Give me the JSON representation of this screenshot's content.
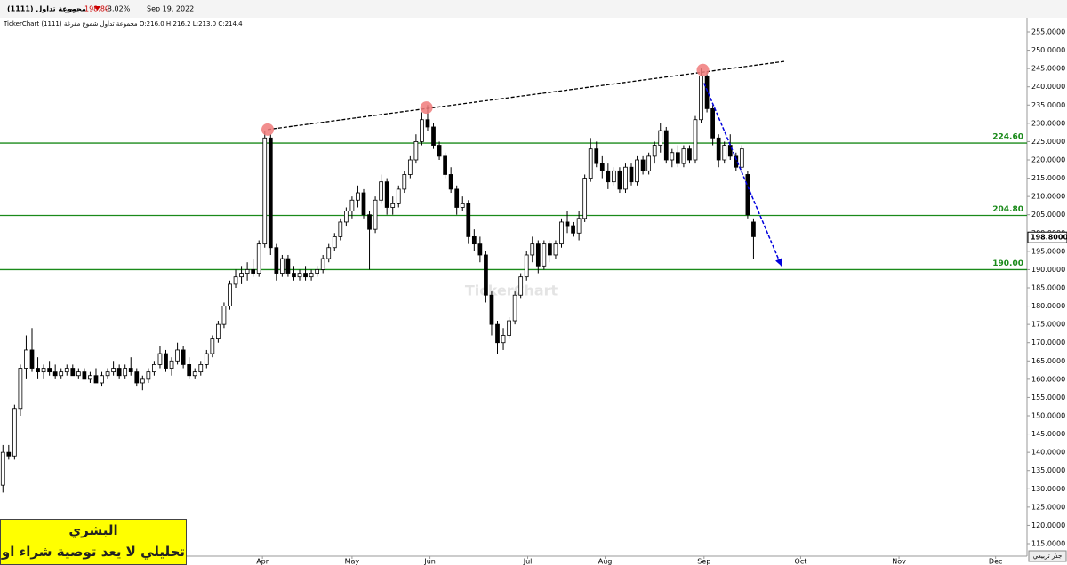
{
  "header": {
    "name": "مجموعة تداول (1111)",
    "period": "يومي",
    "price": "198.80",
    "change": "-3.02%",
    "date": "Sep 19, 2022",
    "info": "TickerChart مجموعة تداول شموع مفرغة (1111) O:216.0 H:216.2 L:213.0 C:214.4"
  },
  "footer": {
    "author": "البشري",
    "disclaimer": "تحليلي لا يعد توصية شراء او بيع",
    "scale_button": "جذر تربيعي"
  },
  "chart_data": {
    "type": "candlestick",
    "watermark": "TickerChart",
    "up_color": "#ffffff",
    "down_color": "#000000",
    "candles": [
      [
        131,
        142,
        129,
        140
      ],
      [
        140,
        142,
        138,
        139
      ],
      [
        139,
        153,
        138,
        152
      ],
      [
        152,
        164,
        150,
        163
      ],
      [
        163,
        172,
        160,
        168
      ],
      [
        168,
        174,
        162,
        163
      ],
      [
        163,
        166,
        160,
        162
      ],
      [
        162,
        164,
        160,
        163
      ],
      [
        163,
        165,
        161,
        162
      ],
      [
        162,
        164,
        160,
        161
      ],
      [
        161,
        163,
        160,
        162
      ],
      [
        162,
        164,
        161,
        163
      ],
      [
        163,
        164,
        161,
        161
      ],
      [
        161,
        163,
        160,
        162
      ],
      [
        162,
        163,
        160,
        160
      ],
      [
        160,
        162,
        159,
        161
      ],
      [
        161,
        163,
        159,
        159
      ],
      [
        159,
        162,
        158,
        161
      ],
      [
        161,
        163,
        160,
        162
      ],
      [
        162,
        165,
        161,
        163
      ],
      [
        163,
        164,
        160,
        161
      ],
      [
        161,
        164,
        160,
        163
      ],
      [
        163,
        166,
        161,
        162
      ],
      [
        162,
        163,
        158,
        159
      ],
      [
        159,
        161,
        157,
        160
      ],
      [
        160,
        163,
        159,
        162
      ],
      [
        162,
        165,
        161,
        164
      ],
      [
        164,
        169,
        163,
        167
      ],
      [
        167,
        168,
        162,
        163
      ],
      [
        163,
        166,
        161,
        165
      ],
      [
        165,
        170,
        164,
        168
      ],
      [
        168,
        169,
        163,
        164
      ],
      [
        164,
        166,
        160,
        161
      ],
      [
        161,
        163,
        160,
        162
      ],
      [
        162,
        165,
        161,
        164
      ],
      [
        164,
        168,
        163,
        167
      ],
      [
        167,
        172,
        166,
        171
      ],
      [
        171,
        176,
        170,
        175
      ],
      [
        175,
        181,
        174,
        180
      ],
      [
        180,
        187,
        179,
        186
      ],
      [
        186,
        190,
        185,
        188
      ],
      [
        188,
        191,
        186,
        189
      ],
      [
        189,
        192,
        187,
        190
      ],
      [
        190,
        193,
        188,
        189
      ],
      [
        189,
        198,
        188,
        197
      ],
      [
        197,
        228,
        196,
        226
      ],
      [
        226,
        227,
        194,
        196
      ],
      [
        196,
        197,
        187,
        189
      ],
      [
        189,
        194,
        188,
        193
      ],
      [
        193,
        194,
        188,
        189
      ],
      [
        189,
        191,
        187,
        188
      ],
      [
        188,
        190,
        187,
        189
      ],
      [
        189,
        191,
        187,
        188
      ],
      [
        188,
        190,
        187,
        189
      ],
      [
        189,
        191,
        188,
        190
      ],
      [
        190,
        194,
        189,
        193
      ],
      [
        193,
        197,
        192,
        196
      ],
      [
        196,
        200,
        195,
        199
      ],
      [
        199,
        204,
        198,
        203
      ],
      [
        203,
        207,
        202,
        206
      ],
      [
        206,
        210,
        204,
        209
      ],
      [
        209,
        213,
        207,
        211
      ],
      [
        211,
        212,
        204,
        205
      ],
      [
        205,
        206,
        190,
        201
      ],
      [
        201,
        210,
        200,
        209
      ],
      [
        209,
        216,
        208,
        214
      ],
      [
        214,
        215,
        205,
        207
      ],
      [
        207,
        210,
        205,
        208
      ],
      [
        208,
        213,
        207,
        212
      ],
      [
        212,
        217,
        211,
        216
      ],
      [
        216,
        221,
        215,
        220
      ],
      [
        220,
        227,
        219,
        225
      ],
      [
        225,
        233,
        224,
        231
      ],
      [
        231,
        235,
        228,
        229
      ],
      [
        229,
        230,
        223,
        224
      ],
      [
        224,
        225,
        220,
        221
      ],
      [
        221,
        222,
        215,
        216
      ],
      [
        216,
        218,
        211,
        212
      ],
      [
        212,
        213,
        205,
        207
      ],
      [
        207,
        210,
        206,
        208
      ],
      [
        208,
        209,
        197,
        199
      ],
      [
        199,
        201,
        195,
        197
      ],
      [
        197,
        199,
        192,
        194
      ],
      [
        194,
        195,
        181,
        183
      ],
      [
        183,
        184,
        172,
        175
      ],
      [
        175,
        176,
        167,
        170
      ],
      [
        170,
        174,
        168,
        172
      ],
      [
        172,
        177,
        171,
        176
      ],
      [
        176,
        184,
        175,
        183
      ],
      [
        183,
        189,
        182,
        188
      ],
      [
        188,
        195,
        187,
        194
      ],
      [
        194,
        199,
        192,
        197
      ],
      [
        197,
        198,
        189,
        191
      ],
      [
        191,
        198,
        190,
        197
      ],
      [
        197,
        198,
        192,
        194
      ],
      [
        194,
        198,
        193,
        197
      ],
      [
        197,
        204,
        196,
        203
      ],
      [
        203,
        206,
        200,
        202
      ],
      [
        202,
        203,
        199,
        200
      ],
      [
        200,
        206,
        198,
        204
      ],
      [
        204,
        216,
        203,
        215
      ],
      [
        215,
        226,
        214,
        223
      ],
      [
        223,
        225,
        218,
        219
      ],
      [
        219,
        221,
        215,
        217
      ],
      [
        217,
        219,
        212,
        214
      ],
      [
        214,
        218,
        213,
        217
      ],
      [
        217,
        218,
        211,
        212
      ],
      [
        212,
        219,
        211,
        218
      ],
      [
        218,
        219,
        213,
        214
      ],
      [
        214,
        221,
        213,
        220
      ],
      [
        220,
        221,
        216,
        217
      ],
      [
        217,
        222,
        216,
        221
      ],
      [
        221,
        225,
        219,
        224
      ],
      [
        224,
        230,
        222,
        228
      ],
      [
        228,
        229,
        219,
        220
      ],
      [
        220,
        223,
        218,
        222
      ],
      [
        222,
        224,
        218,
        219
      ],
      [
        219,
        224,
        218,
        223
      ],
      [
        223,
        224,
        219,
        220
      ],
      [
        220,
        232,
        219,
        231
      ],
      [
        231,
        245,
        230,
        243
      ],
      [
        243,
        244,
        233,
        234
      ],
      [
        234,
        235,
        224,
        226
      ],
      [
        226,
        227,
        218,
        220
      ],
      [
        220,
        225,
        219,
        224
      ],
      [
        224,
        227,
        220,
        221
      ],
      [
        221,
        222,
        217,
        218
      ],
      [
        218,
        224,
        217,
        223
      ],
      [
        216,
        217,
        204,
        205
      ],
      [
        203,
        204,
        193,
        199
      ]
    ],
    "xlim": [
      -0.5,
      176
    ],
    "ylim": [
      111.6,
      258.4
    ],
    "xticks": [
      {
        "value": 44.6,
        "label": "Apr"
      },
      {
        "value": 60,
        "label": "May"
      },
      {
        "value": 73.4,
        "label": "Jun"
      },
      {
        "value": 90.2,
        "label": "Jul"
      },
      {
        "value": 103.5,
        "label": "Aug"
      },
      {
        "value": 120.5,
        "label": "Sep"
      },
      {
        "value": 137.1,
        "label": "Oct"
      },
      {
        "value": 154,
        "label": "Nov"
      },
      {
        "value": 170.6,
        "label": "Dec"
      }
    ],
    "yticks": [
      {
        "value": 115,
        "label": "115.0000"
      },
      {
        "value": 120,
        "label": "120.0000"
      },
      {
        "value": 125,
        "label": "125.0000"
      },
      {
        "value": 130,
        "label": "130.0000"
      },
      {
        "value": 135,
        "label": "135.0000"
      },
      {
        "value": 140,
        "label": "140.0000"
      },
      {
        "value": 145,
        "label": "145.0000"
      },
      {
        "value": 150,
        "label": "150.0000"
      },
      {
        "value": 155,
        "label": "155.0000"
      },
      {
        "value": 160,
        "label": "160.0000"
      },
      {
        "value": 165,
        "label": "165.0000"
      },
      {
        "value": 170,
        "label": "170.0000"
      },
      {
        "value": 175,
        "label": "175.0000"
      },
      {
        "value": 180,
        "label": "180.0000"
      },
      {
        "value": 185,
        "label": "185.0000"
      },
      {
        "value": 190,
        "label": "190.0000"
      },
      {
        "value": 195,
        "label": "195.0000"
      },
      {
        "value": 200,
        "label": "200.0000"
      },
      {
        "value": 205,
        "label": "205.0000"
      },
      {
        "value": 210,
        "label": "210.0000"
      },
      {
        "value": 215,
        "label": "215.0000"
      },
      {
        "value": 220,
        "label": "220.0000"
      },
      {
        "value": 225,
        "label": "225.0000"
      },
      {
        "value": 230,
        "label": "230.0000"
      },
      {
        "value": 235,
        "label": "235.0000"
      },
      {
        "value": 240,
        "label": "240.0000"
      },
      {
        "value": 245,
        "label": "245.0000"
      },
      {
        "value": 250,
        "label": "250.0000"
      },
      {
        "value": 255,
        "label": "255.0000"
      }
    ],
    "last_price": {
      "value": 198.8,
      "label": "198.8000"
    },
    "levels": [
      {
        "value": 224.6,
        "label": "224.60"
      },
      {
        "value": 204.8,
        "label": "204.80"
      },
      {
        "value": 190,
        "label": "190.00"
      }
    ],
    "level_color": "#1a8a1a",
    "trend_line": {
      "x": [
        45.5,
        134.5
      ],
      "y": [
        228.3,
        247
      ],
      "color": "#000000"
    },
    "markers": {
      "x": [
        45.5,
        72.8,
        120.3
      ],
      "y": [
        228.3,
        234.3,
        244.6
      ],
      "color": "#f07a7a"
    },
    "arrow": {
      "x": [
        120.5,
        133.8
      ],
      "y": [
        241,
        191
      ],
      "color": "#0000dd"
    }
  }
}
